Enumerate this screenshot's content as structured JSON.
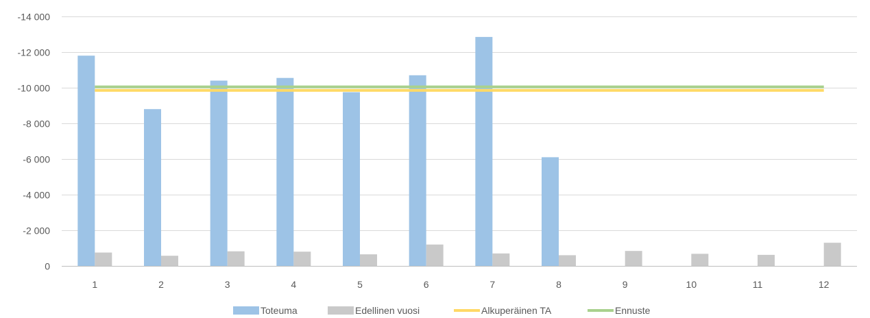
{
  "chart_data": {
    "type": "bar",
    "title": "",
    "xlabel": "",
    "ylabel": "",
    "categories": [
      "1",
      "2",
      "3",
      "4",
      "5",
      "6",
      "7",
      "8",
      "9",
      "10",
      "11",
      "12"
    ],
    "ylim": [
      -14000,
      0
    ],
    "y_ticks": [
      {
        "value": -14000,
        "label": "-14 000"
      },
      {
        "value": -12000,
        "label": "-12 000"
      },
      {
        "value": -10000,
        "label": "-10 000"
      },
      {
        "value": -8000,
        "label": "-8 000"
      },
      {
        "value": -6000,
        "label": "-6 000"
      },
      {
        "value": -4000,
        "label": "-4 000"
      },
      {
        "value": -2000,
        "label": "-2 000"
      },
      {
        "value": 0,
        "label": "0"
      }
    ],
    "y_axis_reversed": true,
    "grid": true,
    "legend_position": "bottom",
    "series": [
      {
        "name": "Toteuma",
        "kind": "bar",
        "color": "#9DC3E6",
        "values": [
          -11800,
          -8800,
          -10400,
          -10550,
          -9750,
          -10700,
          -12850,
          -6100,
          null,
          null,
          null,
          null
        ]
      },
      {
        "name": "Edellinen vuosi",
        "kind": "bar",
        "color": "#C9C9C9",
        "values": [
          -750,
          -570,
          -820,
          -800,
          -650,
          -1200,
          -700,
          -600,
          -840,
          -680,
          -620,
          -1300
        ]
      },
      {
        "name": "Alkuperäinen TA",
        "kind": "line",
        "color": "#FFD966",
        "values": [
          -9850,
          -9850,
          -9850,
          -9850,
          -9850,
          -9850,
          -9850,
          -9850,
          -9850,
          -9850,
          -9850,
          -9850
        ]
      },
      {
        "name": "Ennuste",
        "kind": "line",
        "color": "#A9D18E",
        "values": [
          -10050,
          -10050,
          -10050,
          -10050,
          -10050,
          -10050,
          -10050,
          -10050,
          -10050,
          -10050,
          -10050,
          -10050
        ]
      }
    ]
  }
}
